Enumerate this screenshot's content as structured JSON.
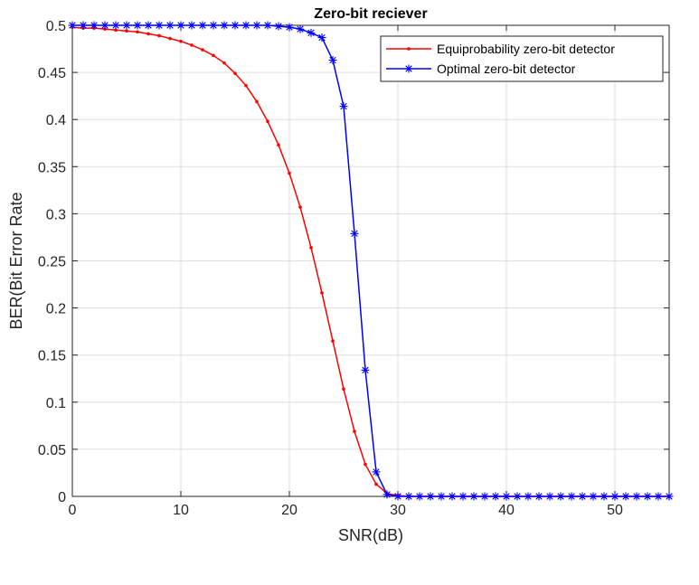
{
  "chart_data": {
    "type": "line",
    "title": "Zero-bit reciever",
    "xlabel": "SNR(dB)",
    "ylabel": "BER(Bit Error Rate",
    "xlim": [
      0,
      55
    ],
    "ylim": [
      0,
      0.5
    ],
    "xticks": [
      0,
      10,
      20,
      30,
      40,
      50
    ],
    "xtick_labels": [
      "0",
      "10",
      "20",
      "30",
      "40",
      "50"
    ],
    "yticks": [
      0,
      0.05,
      0.1,
      0.15,
      0.2,
      0.25,
      0.3,
      0.35,
      0.4,
      0.45,
      0.5
    ],
    "ytick_labels": [
      "0",
      "0.05",
      "0.1",
      "0.15",
      "0.2",
      "0.25",
      "0.3",
      "0.35",
      "0.4",
      "0.45",
      "0.5"
    ],
    "grid": true,
    "legend_position": "top-right",
    "series": [
      {
        "name": "Equiprobability zero-bit detector",
        "color": "#ff0000",
        "marker": "dot",
        "x": [
          0,
          1,
          2,
          3,
          4,
          5,
          6,
          7,
          8,
          9,
          10,
          11,
          12,
          13,
          14,
          15,
          16,
          17,
          18,
          19,
          20,
          21,
          22,
          23,
          24,
          25,
          26,
          27,
          28,
          29,
          30,
          31,
          32,
          33,
          34,
          35,
          36,
          37,
          38,
          39,
          40,
          41,
          42,
          43,
          44,
          45,
          46,
          47,
          48,
          49,
          50,
          51,
          52,
          53,
          54,
          55
        ],
        "values": [
          0.498,
          0.497,
          0.497,
          0.496,
          0.495,
          0.494,
          0.493,
          0.491,
          0.489,
          0.486,
          0.483,
          0.479,
          0.474,
          0.468,
          0.46,
          0.449,
          0.436,
          0.419,
          0.398,
          0.373,
          0.343,
          0.307,
          0.264,
          0.216,
          0.165,
          0.114,
          0.069,
          0.034,
          0.013,
          0.003,
          0.001,
          0,
          0,
          0,
          0,
          0,
          0,
          0,
          0,
          0,
          0,
          0,
          0,
          0,
          0,
          0,
          0,
          0,
          0,
          0,
          0,
          0,
          0,
          0,
          0,
          0
        ]
      },
      {
        "name": "Optimal zero-bit detector",
        "color": "#0000ff",
        "marker": "asterisk",
        "x": [
          0,
          1,
          2,
          3,
          4,
          5,
          6,
          7,
          8,
          9,
          10,
          11,
          12,
          13,
          14,
          15,
          16,
          17,
          18,
          19,
          20,
          21,
          22,
          23,
          24,
          25,
          26,
          27,
          28,
          29,
          30,
          31,
          32,
          33,
          34,
          35,
          36,
          37,
          38,
          39,
          40,
          41,
          42,
          43,
          44,
          45,
          46,
          47,
          48,
          49,
          50,
          51,
          52,
          53,
          54,
          55
        ],
        "values": [
          0.5,
          0.5,
          0.5,
          0.5,
          0.5,
          0.5,
          0.5,
          0.5,
          0.5,
          0.5,
          0.5,
          0.5,
          0.5,
          0.5,
          0.5,
          0.5,
          0.5,
          0.5,
          0.5,
          0.499,
          0.498,
          0.496,
          0.492,
          0.487,
          0.463,
          0.414,
          0.279,
          0.134,
          0.026,
          0.002,
          0,
          0,
          0,
          0,
          0,
          0,
          0,
          0,
          0,
          0,
          0,
          0,
          0,
          0,
          0,
          0,
          0,
          0,
          0,
          0,
          0,
          0,
          0,
          0,
          0,
          0
        ]
      }
    ]
  }
}
